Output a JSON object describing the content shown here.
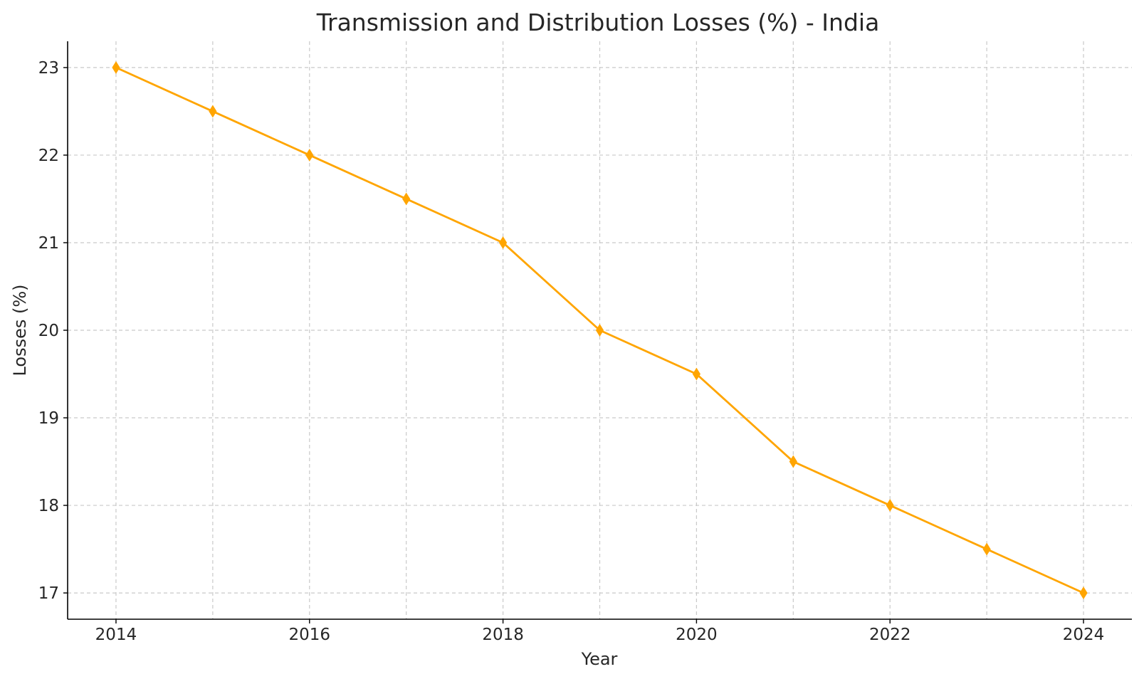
{
  "chart_data": {
    "type": "line",
    "title": "Transmission and Distribution Losses (%) - India",
    "xlabel": "Year",
    "ylabel": "Losses (%)",
    "x": [
      2014,
      2015,
      2016,
      2017,
      2018,
      2019,
      2020,
      2021,
      2022,
      2023,
      2024
    ],
    "series": [
      {
        "values": [
          23,
          22.5,
          22,
          21.5,
          21,
          20,
          19.5,
          18.5,
          18,
          17.5,
          17
        ],
        "color": "#FFA500",
        "marker": "thin-diamond"
      }
    ],
    "xlim": [
      2013.5,
      2024.5
    ],
    "ylim": [
      16.7,
      23.3
    ],
    "xticks": [
      2014,
      2016,
      2018,
      2020,
      2022,
      2024
    ],
    "xtick_labels": [
      "2014",
      "2016",
      "2018",
      "2020",
      "2022",
      "2024"
    ],
    "yticks": [
      17,
      18,
      19,
      20,
      21,
      22,
      23
    ],
    "ytick_labels": [
      "17",
      "18",
      "19",
      "20",
      "21",
      "22",
      "23"
    ],
    "grid": true,
    "legend": "none"
  }
}
